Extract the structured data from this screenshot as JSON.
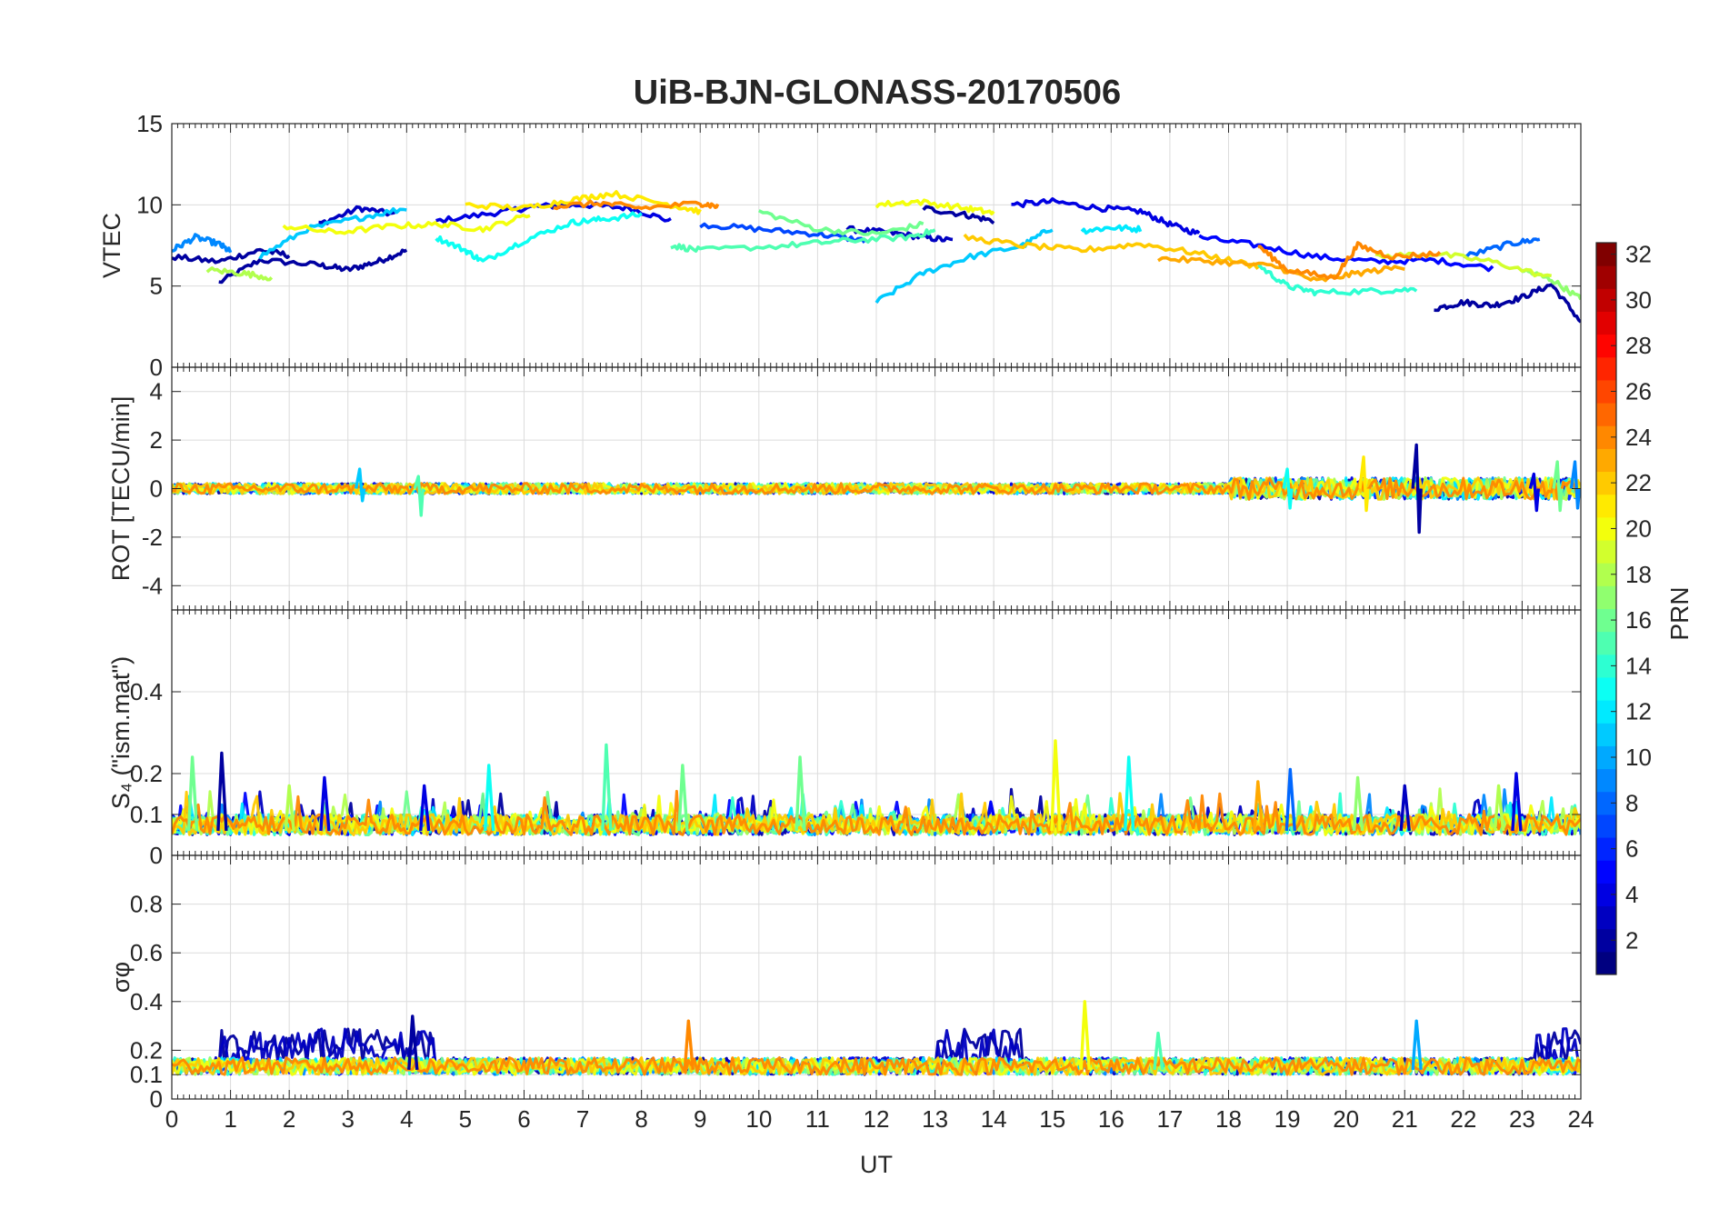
{
  "chart_data": {
    "type": "line",
    "title": "UiB-BJN-GLONASS-20170506",
    "xlabel": "UT",
    "xlim": [
      0,
      24
    ],
    "xticks": [
      0,
      1,
      2,
      3,
      4,
      5,
      6,
      7,
      8,
      9,
      10,
      11,
      12,
      13,
      14,
      15,
      16,
      17,
      18,
      19,
      20,
      21,
      22,
      23,
      24
    ],
    "grid": true,
    "colormap": "jet",
    "colorbar": {
      "label": "PRN",
      "range": [
        1,
        32
      ],
      "ticks": [
        2,
        4,
        6,
        8,
        10,
        12,
        14,
        16,
        18,
        20,
        22,
        24,
        26,
        28,
        30,
        32
      ],
      "placement": "right"
    },
    "panels": [
      {
        "id": "vtec",
        "ylabel": "VTEC",
        "ylim": [
          0,
          15
        ],
        "yticks": [
          0,
          5,
          10,
          15
        ],
        "series": [
          {
            "prn": 2,
            "x": [
              0.8,
              1.5,
              2.5,
              3.0,
              3.5,
              4.0
            ],
            "y": [
              5.2,
              6.6,
              6.3,
              6.0,
              6.5,
              7.2
            ]
          },
          {
            "prn": 3,
            "x": [
              2.5,
              3.2,
              3.8
            ],
            "y": [
              8.8,
              9.8,
              9.4
            ]
          },
          {
            "prn": 4,
            "x": [
              4.5,
              5.5,
              6.2,
              7.0,
              7.8,
              8.5
            ],
            "y": [
              9.0,
              9.5,
              9.9,
              10.0,
              9.8,
              9.0
            ]
          },
          {
            "prn": 2,
            "x": [
              0.0,
              0.8,
              1.5,
              2.0
            ],
            "y": [
              6.8,
              6.5,
              7.2,
              6.9
            ]
          },
          {
            "prn": 3,
            "x": [
              11.5,
              12.2,
              12.8,
              13.3
            ],
            "y": [
              8.5,
              8.3,
              8.0,
              7.8
            ]
          },
          {
            "prn": 2,
            "x": [
              12.8,
              13.5,
              14.0
            ],
            "y": [
              9.8,
              9.4,
              9.0
            ]
          },
          {
            "prn": 4,
            "x": [
              14.3,
              15.0,
              15.8,
              16.5,
              17.0,
              17.5
            ],
            "y": [
              10.0,
              10.2,
              9.8,
              9.6,
              8.8,
              8.2
            ]
          },
          {
            "prn": 2,
            "x": [
              21.5,
              22.0,
              22.5,
              23.0,
              23.5,
              24.0
            ],
            "y": [
              3.6,
              4.0,
              3.8,
              4.3,
              5.1,
              2.8
            ]
          },
          {
            "prn": 5,
            "x": [
              17.5,
              18.5,
              19.5,
              20.5,
              21.5,
              22.5
            ],
            "y": [
              8.0,
              7.5,
              6.8,
              6.5,
              6.6,
              6.1
            ]
          },
          {
            "prn": 7,
            "x": [
              9.0,
              10.0,
              11.0,
              11.8
            ],
            "y": [
              8.8,
              8.5,
              8.2,
              7.8
            ]
          },
          {
            "prn": 8,
            "x": [
              22.0,
              22.8,
              23.3
            ],
            "y": [
              6.8,
              7.6,
              7.9
            ]
          },
          {
            "prn": 9,
            "x": [
              0.0,
              0.4,
              0.8,
              1.0
            ],
            "y": [
              7.2,
              8.0,
              7.6,
              7.1
            ]
          },
          {
            "prn": 11,
            "x": [
              12.0,
              12.8,
              13.6,
              14.5,
              15.0
            ],
            "y": [
              4.0,
              5.8,
              6.8,
              7.5,
              8.6
            ]
          },
          {
            "prn": 11,
            "x": [
              1.5,
              2.3,
              3.2,
              4.0
            ],
            "y": [
              6.8,
              8.5,
              9.2,
              9.8
            ]
          },
          {
            "prn": 12,
            "x": [
              15.5,
              16.0,
              16.5
            ],
            "y": [
              8.4,
              8.6,
              8.5
            ]
          },
          {
            "prn": 13,
            "x": [
              4.5,
              5.0,
              5.3,
              6.0,
              6.8,
              7.3,
              8.0
            ],
            "y": [
              8.0,
              7.2,
              6.5,
              7.8,
              8.9,
              9.1,
              9.4
            ]
          },
          {
            "prn": 14,
            "x": [
              18.5,
              19.0,
              19.5,
              20.5,
              21.2
            ],
            "y": [
              6.3,
              5.0,
              4.6,
              4.7,
              4.8
            ]
          },
          {
            "prn": 15,
            "x": [
              8.5,
              9.0,
              10.5,
              11.5,
              12.5,
              13.0
            ],
            "y": [
              7.5,
              7.2,
              7.5,
              7.8,
              8.0,
              8.4
            ]
          },
          {
            "prn": 16,
            "x": [
              10.0,
              11.0,
              12.0,
              12.8
            ],
            "y": [
              9.6,
              8.5,
              8.2,
              8.8
            ]
          },
          {
            "prn": 17,
            "x": [
              23.0,
              23.5,
              24.0
            ],
            "y": [
              6.0,
              5.4,
              4.2
            ]
          },
          {
            "prn": 18,
            "x": [
              0.6,
              1.2,
              1.7
            ],
            "y": [
              6.0,
              5.8,
              5.5
            ]
          },
          {
            "prn": 19,
            "x": [
              20.5,
              21.5,
              22.5,
              23.5
            ],
            "y": [
              6.8,
              7.0,
              6.5,
              5.5
            ]
          },
          {
            "prn": 20,
            "x": [
              1.9,
              2.8,
              3.8,
              4.6,
              5.3,
              6.1
            ],
            "y": [
              8.7,
              8.3,
              8.7,
              8.8,
              8.5,
              9.4
            ]
          },
          {
            "prn": 20,
            "x": [
              12.0,
              12.7,
              13.5,
              14.0
            ],
            "y": [
              10.0,
              10.2,
              9.8,
              9.5
            ]
          },
          {
            "prn": 21,
            "x": [
              5.0,
              6.0,
              6.8,
              7.5,
              8.5,
              9.0
            ],
            "y": [
              10.0,
              9.8,
              10.3,
              10.7,
              10.0,
              9.6
            ]
          },
          {
            "prn": 22,
            "x": [
              13.5,
              14.5,
              15.5,
              16.5,
              17.5,
              18.5
            ],
            "y": [
              8.0,
              7.5,
              7.2,
              7.6,
              7.0,
              6.2
            ]
          },
          {
            "prn": 23,
            "x": [
              16.8,
              17.8,
              18.8,
              19.5,
              20.2,
              21.0
            ],
            "y": [
              6.7,
              6.5,
              6.2,
              5.3,
              5.8,
              6.2
            ]
          },
          {
            "prn": 24,
            "x": [
              6.5,
              7.3,
              8.0,
              9.0,
              9.3
            ],
            "y": [
              9.9,
              10.1,
              9.8,
              10.1,
              9.9
            ]
          },
          {
            "prn": 24,
            "x": [
              18.5,
              19.0,
              19.8,
              20.2,
              20.8,
              21.6
            ],
            "y": [
              7.5,
              6.0,
              5.5,
              7.5,
              6.8,
              7.0
            ]
          }
        ]
      },
      {
        "id": "rot",
        "ylabel": "ROT [TECU/min]",
        "ylim": [
          -5,
          5
        ],
        "yticks": [
          -4,
          -2,
          0,
          2,
          4
        ],
        "spikes": [
          {
            "prn": 2,
            "x": 21.2,
            "y": [
              1.8,
              -1.8
            ]
          },
          {
            "prn": 21,
            "x": 20.3,
            "y": [
              1.3,
              -0.9
            ]
          },
          {
            "prn": 16,
            "x": 23.6,
            "y": [
              1.1,
              -0.9
            ]
          },
          {
            "prn": 9,
            "x": 23.9,
            "y": [
              1.1,
              -0.8
            ]
          },
          {
            "prn": 4,
            "x": 23.2,
            "y": [
              0.6,
              -0.9
            ]
          },
          {
            "prn": 13,
            "x": 19.0,
            "y": [
              0.8,
              -0.8
            ]
          },
          {
            "prn": 15,
            "x": 4.2,
            "y": [
              0.5,
              -1.1
            ]
          },
          {
            "prn": 11,
            "x": 3.2,
            "y": [
              0.8,
              -0.5
            ]
          }
        ]
      },
      {
        "id": "s4",
        "ylabel": "S₄ (\"ism.mat\")",
        "ylim": [
          0,
          0.6
        ],
        "yticks": [
          0,
          0.1,
          0.2,
          0.4
        ],
        "spikes": [
          {
            "prn": 2,
            "x": 0.85,
            "y": 0.25
          },
          {
            "prn": 16,
            "x": 0.35,
            "y": 0.24
          },
          {
            "prn": 18,
            "x": 2.0,
            "y": 0.17
          },
          {
            "prn": 4,
            "x": 2.6,
            "y": 0.19
          },
          {
            "prn": 4,
            "x": 4.3,
            "y": 0.17
          },
          {
            "prn": 13,
            "x": 5.4,
            "y": 0.22
          },
          {
            "prn": 15,
            "x": 7.4,
            "y": 0.27
          },
          {
            "prn": 16,
            "x": 8.7,
            "y": 0.22
          },
          {
            "prn": 16,
            "x": 10.7,
            "y": 0.24
          },
          {
            "prn": 20,
            "x": 15.05,
            "y": 0.28
          },
          {
            "prn": 13,
            "x": 16.3,
            "y": 0.24
          },
          {
            "prn": 8,
            "x": 19.05,
            "y": 0.21
          },
          {
            "prn": 4,
            "x": 22.9,
            "y": 0.2
          },
          {
            "prn": 23,
            "x": 18.5,
            "y": 0.18
          },
          {
            "prn": 17,
            "x": 20.2,
            "y": 0.19
          },
          {
            "prn": 18,
            "x": 22.6,
            "y": 0.17
          },
          {
            "prn": 3,
            "x": 21.0,
            "y": 0.17
          }
        ]
      },
      {
        "id": "sigma_phi",
        "ylabel": "σφ",
        "ylim": [
          0,
          1
        ],
        "yticks": [
          0,
          0.1,
          0.2,
          0.4,
          0.6,
          0.8
        ],
        "spikes": [
          {
            "prn": 20,
            "x": 15.55,
            "y": 0.4
          },
          {
            "prn": 24,
            "x": 8.8,
            "y": 0.32
          },
          {
            "prn": 10,
            "x": 21.2,
            "y": 0.32
          },
          {
            "prn": 2,
            "x": 4.1,
            "y": 0.34
          },
          {
            "prn": 15,
            "x": 16.8,
            "y": 0.27
          }
        ]
      }
    ]
  }
}
